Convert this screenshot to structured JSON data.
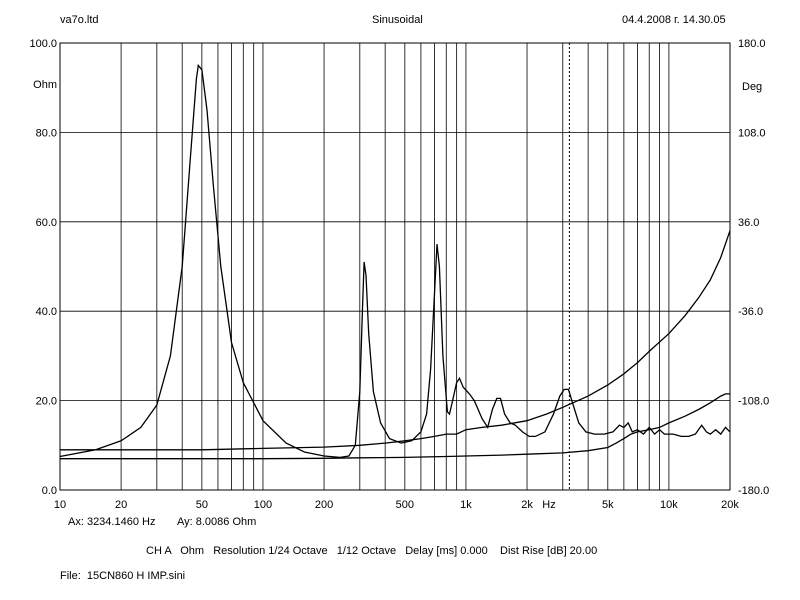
{
  "header": {
    "left": "va7o.ltd",
    "center": "Sinusoidal",
    "right": "04.4.2008 г. 14.30.05"
  },
  "cursor_readout": {
    "ax": "Ax: 3234.1460 Hz",
    "ay": "Ay: 8.0086 Ohm"
  },
  "settings_line": "CH A   Ohm   Resolution 1/24 Octave   1/12 Octave   Delay [ms] 0.000    Dist Rise [dB] 20.00",
  "file_line": "File:  15CN860 H IMP.sini",
  "chart_data": {
    "type": "line",
    "x_scale": "log",
    "xlim": [
      10,
      20000
    ],
    "x_ticks": [
      {
        "v": 10,
        "label": "10"
      },
      {
        "v": 20,
        "label": "20"
      },
      {
        "v": 50,
        "label": "50"
      },
      {
        "v": 100,
        "label": "100"
      },
      {
        "v": 200,
        "label": "200"
      },
      {
        "v": 500,
        "label": "500"
      },
      {
        "v": 1000,
        "label": "1k"
      },
      {
        "v": 2000,
        "label": "2k"
      },
      {
        "v": 5000,
        "label": "5k"
      },
      {
        "v": 10000,
        "label": "10k"
      },
      {
        "v": 20000,
        "label": "20k"
      }
    ],
    "x_unit_label": "Hz",
    "ylim_left": [
      0,
      100
    ],
    "y_ticks_left": [
      "0.0",
      "20.0",
      "40.0",
      "60.0",
      "80.0",
      "100.0"
    ],
    "y_unit_left": "Ohm",
    "ylim_right": [
      -180,
      180
    ],
    "y_ticks_right": [
      "-180.0",
      "-108.0",
      "-36.0",
      "36.0",
      "108.0",
      "180.0"
    ],
    "y_unit_right": "Deg",
    "grid": true,
    "cursor_x": 3234.146,
    "series": [
      {
        "axis": "left",
        "points": [
          [
            10,
            7.5
          ],
          [
            15,
            9
          ],
          [
            20,
            11
          ],
          [
            25,
            14
          ],
          [
            30,
            19
          ],
          [
            35,
            30
          ],
          [
            40,
            50
          ],
          [
            44,
            75
          ],
          [
            47,
            92
          ],
          [
            48,
            95
          ],
          [
            50,
            94
          ],
          [
            53,
            85
          ],
          [
            57,
            68
          ],
          [
            62,
            50
          ],
          [
            70,
            33
          ],
          [
            80,
            24
          ],
          [
            100,
            15.5
          ],
          [
            130,
            10.5
          ],
          [
            160,
            8.5
          ],
          [
            200,
            7.6
          ],
          [
            240,
            7.3
          ],
          [
            265,
            7.6
          ],
          [
            285,
            10
          ],
          [
            300,
            22
          ],
          [
            310,
            42
          ],
          [
            315,
            51
          ],
          [
            322,
            48
          ],
          [
            332,
            35
          ],
          [
            350,
            22
          ],
          [
            380,
            15
          ],
          [
            420,
            11.5
          ],
          [
            480,
            10.5
          ],
          [
            540,
            11
          ],
          [
            600,
            13
          ],
          [
            640,
            17
          ],
          [
            670,
            27
          ],
          [
            700,
            44
          ],
          [
            720,
            55
          ],
          [
            740,
            50
          ],
          [
            770,
            30
          ],
          [
            810,
            17.5
          ],
          [
            830,
            17
          ],
          [
            860,
            20
          ],
          [
            900,
            24
          ],
          [
            930,
            25
          ],
          [
            970,
            23
          ],
          [
            1040,
            21.5
          ],
          [
            1100,
            20
          ],
          [
            1200,
            16
          ],
          [
            1280,
            14
          ],
          [
            1350,
            18
          ],
          [
            1420,
            20.5
          ],
          [
            1480,
            20.5
          ],
          [
            1550,
            17
          ],
          [
            1650,
            15
          ],
          [
            1750,
            14.5
          ],
          [
            1900,
            13
          ],
          [
            2050,
            12
          ],
          [
            2200,
            12
          ],
          [
            2450,
            13
          ],
          [
            2700,
            17
          ],
          [
            2900,
            21
          ],
          [
            3050,
            22.5
          ],
          [
            3200,
            22.5
          ],
          [
            3350,
            19.5
          ],
          [
            3600,
            15
          ],
          [
            3900,
            13
          ],
          [
            4300,
            12.5
          ],
          [
            4800,
            12.5
          ],
          [
            5300,
            13
          ],
          [
            5700,
            14.5
          ],
          [
            6000,
            14
          ],
          [
            6300,
            15
          ],
          [
            6600,
            13
          ],
          [
            7000,
            13.5
          ],
          [
            7500,
            12.5
          ],
          [
            8000,
            14
          ],
          [
            8500,
            12.5
          ],
          [
            9000,
            13.5
          ],
          [
            9500,
            12.5
          ],
          [
            10500,
            12.5
          ],
          [
            11500,
            12
          ],
          [
            12500,
            12
          ],
          [
            13500,
            12.5
          ],
          [
            14500,
            14.5
          ],
          [
            15300,
            13
          ],
          [
            16000,
            12.5
          ],
          [
            17000,
            13.5
          ],
          [
            18000,
            12.5
          ],
          [
            19000,
            14
          ],
          [
            20000,
            13
          ]
        ]
      },
      {
        "axis": "left",
        "points": [
          [
            10,
            9
          ],
          [
            50,
            9
          ],
          [
            100,
            9.3
          ],
          [
            200,
            9.6
          ],
          [
            300,
            10
          ],
          [
            400,
            10.5
          ],
          [
            500,
            11
          ],
          [
            600,
            11.5
          ],
          [
            700,
            12
          ],
          [
            800,
            12.5
          ],
          [
            900,
            12.5
          ],
          [
            1000,
            13.5
          ],
          [
            1200,
            14
          ],
          [
            1500,
            14.5
          ],
          [
            2000,
            15.5
          ],
          [
            2500,
            17
          ],
          [
            3000,
            18.5
          ],
          [
            4000,
            21
          ],
          [
            5000,
            23.5
          ],
          [
            6000,
            26
          ],
          [
            7000,
            28.5
          ],
          [
            8000,
            31
          ],
          [
            10000,
            35
          ],
          [
            12000,
            39
          ],
          [
            14000,
            43
          ],
          [
            16000,
            47
          ],
          [
            18000,
            52
          ],
          [
            20000,
            58
          ]
        ]
      },
      {
        "axis": "left",
        "points": [
          [
            10,
            7
          ],
          [
            50,
            7
          ],
          [
            100,
            7
          ],
          [
            200,
            7.1
          ],
          [
            300,
            7.2
          ],
          [
            500,
            7.3
          ],
          [
            800,
            7.5
          ],
          [
            1000,
            7.6
          ],
          [
            1500,
            7.8
          ],
          [
            2000,
            8
          ],
          [
            3000,
            8.3
          ],
          [
            4000,
            8.8
          ],
          [
            5000,
            9.5
          ],
          [
            5500,
            10.5
          ],
          [
            6000,
            11.5
          ],
          [
            6500,
            12.5
          ],
          [
            7000,
            13
          ],
          [
            8000,
            13.5
          ],
          [
            9000,
            14
          ],
          [
            10000,
            15
          ],
          [
            12000,
            16.5
          ],
          [
            14000,
            18
          ],
          [
            16000,
            19.5
          ],
          [
            18000,
            21
          ],
          [
            19000,
            21.5
          ],
          [
            20000,
            21.5
          ]
        ]
      }
    ]
  }
}
